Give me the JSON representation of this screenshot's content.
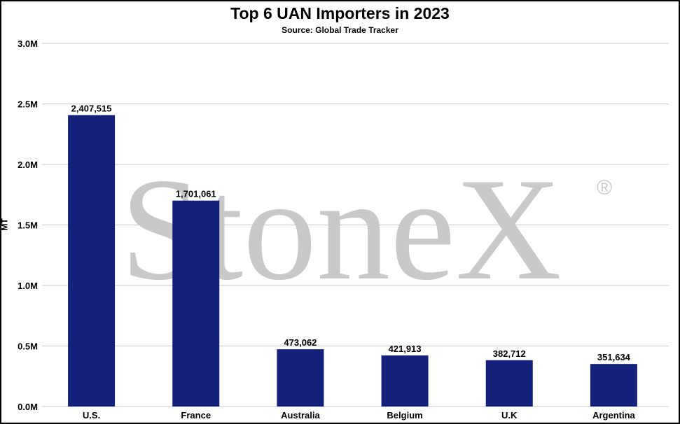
{
  "chart_data": {
    "type": "bar",
    "title": "Top 6 UAN Importers in 2023",
    "subtitle": "Source: Global Trade Tracker",
    "xlabel": "",
    "ylabel": "MT",
    "categories": [
      "U.S.",
      "France",
      "Australia",
      "Belgium",
      "U.K",
      "Argentina"
    ],
    "values": [
      2407515,
      1701061,
      473062,
      421913,
      382712,
      351634
    ],
    "data_labels": [
      "2,407,515",
      "1,701,061",
      "473,062",
      "421,913",
      "382,712",
      "351,634"
    ],
    "ylim": [
      0,
      3000000
    ],
    "yticks": [
      0,
      500000,
      1000000,
      1500000,
      2000000,
      2500000,
      3000000
    ],
    "ytick_labels": [
      "0.0M",
      "0.5M",
      "1.0M",
      "1.5M",
      "2.0M",
      "2.5M",
      "3.0M"
    ],
    "grid": true,
    "legend": "none",
    "bar_color": "#15207a",
    "grid_color": "#c8c8c8"
  },
  "watermark": {
    "text": "StoneX",
    "symbol": "®",
    "color": "#c9c9c9"
  }
}
